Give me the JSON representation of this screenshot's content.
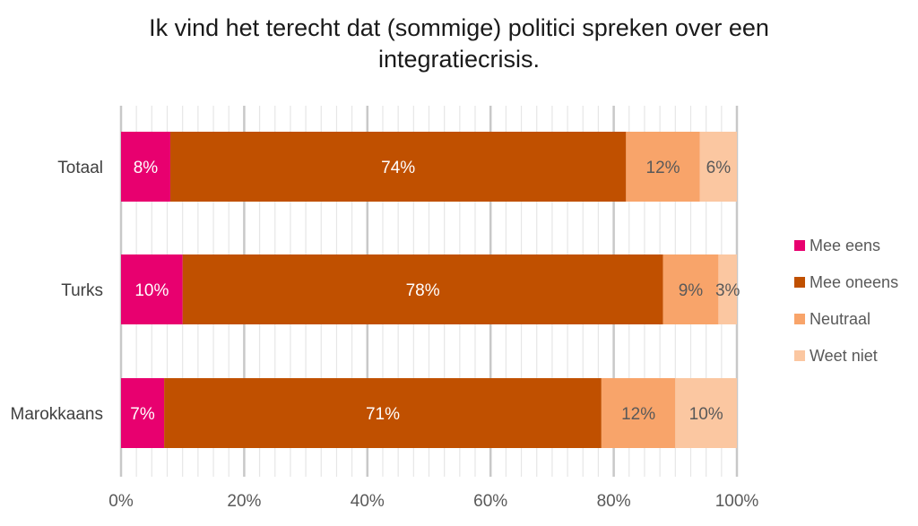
{
  "title_lines": [
    "Ik vind het terecht dat (sommige) politici spreken over een",
    "integratiecrisis."
  ],
  "chart_data": {
    "type": "bar",
    "orientation": "horizontal",
    "stacked": true,
    "categories": [
      "Totaal",
      "Turks",
      "Marokkaans"
    ],
    "series": [
      {
        "name": "Mee eens",
        "values": [
          8,
          10,
          7
        ],
        "labels": [
          "8%",
          "10%",
          "7%"
        ],
        "color": "#e8006f",
        "label_color": "#ffffff"
      },
      {
        "name": "Mee oneens",
        "values": [
          74,
          78,
          71
        ],
        "labels": [
          "74%",
          "78%",
          "71%"
        ],
        "color": "#c05000",
        "label_color": "#ffffff"
      },
      {
        "name": "Neutraal",
        "values": [
          12,
          9,
          12
        ],
        "labels": [
          "12%",
          "9%",
          "12%"
        ],
        "color": "#f8a46a",
        "label_color": "#595959"
      },
      {
        "name": "Weet niet",
        "values": [
          6,
          3,
          10
        ],
        "labels": [
          "6%",
          "3%",
          "10%"
        ],
        "color": "#fbc7a1",
        "label_color": "#595959"
      }
    ],
    "xlim": [
      0,
      100
    ],
    "xticks": [
      0,
      20,
      40,
      60,
      80,
      100
    ],
    "xtick_labels": [
      "0%",
      "20%",
      "40%",
      "60%",
      "80%",
      "100%"
    ],
    "grid": true,
    "legend_position": "right"
  }
}
